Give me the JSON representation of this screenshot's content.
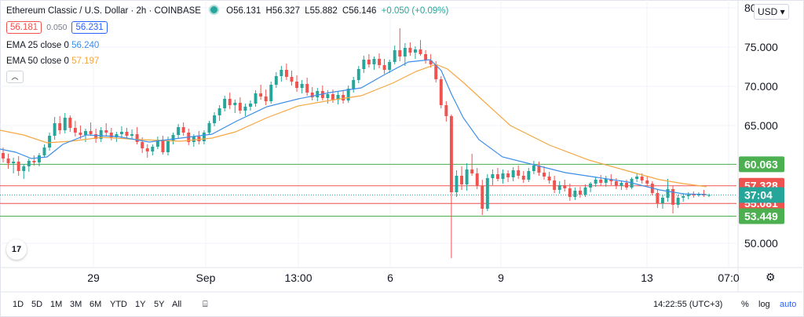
{
  "header": {
    "symbol_title": "Ethereum Classic / U.S. Dollar · 2h · COINBASE",
    "ohlc": {
      "open": "O56.131",
      "high": "H56.327",
      "low": "L55.882",
      "close": "C56.146",
      "change": "+0.050 (+0.09%)"
    },
    "sell_price": "56.181",
    "spread": "0.050",
    "buy_price": "56.231",
    "currency": "USD",
    "collapse_icon": "chevron-up-icon"
  },
  "indicators": [
    {
      "label": "EMA 25 close 0",
      "value": "56.240",
      "color": "#3d8ee8"
    },
    {
      "label": "EMA 50 close 0",
      "value": "57.197",
      "color": "#f5a742"
    }
  ],
  "chart_data": {
    "type": "candlestick",
    "ylim": [
      47,
      81
    ],
    "y_ticks": [
      {
        "value": 50,
        "label": "50.000"
      },
      {
        "value": 55,
        "label": "55.000"
      },
      {
        "value": 60,
        "label": "60.000"
      },
      {
        "value": 65,
        "label": "65.000"
      },
      {
        "value": 70,
        "label": "70.000"
      },
      {
        "value": 75,
        "label": "75.000"
      },
      {
        "value": 80,
        "label": "80.000"
      }
    ],
    "x_ticks": [
      "29",
      "Sep",
      "13:00",
      "6",
      "9",
      "13",
      "07:0"
    ],
    "candles": [
      {
        "o": 61.5,
        "h": 62.2,
        "l": 60.3,
        "c": 60.8
      },
      {
        "o": 60.8,
        "h": 61.4,
        "l": 59.5,
        "c": 60.2
      },
      {
        "o": 60.2,
        "h": 60.9,
        "l": 58.9,
        "c": 60.4
      },
      {
        "o": 60.4,
        "h": 61.1,
        "l": 58.6,
        "c": 59.2
      },
      {
        "o": 59.2,
        "h": 60.1,
        "l": 58.2,
        "c": 59.8
      },
      {
        "o": 59.8,
        "h": 60.8,
        "l": 59.1,
        "c": 60.5
      },
      {
        "o": 60.5,
        "h": 61.2,
        "l": 59.9,
        "c": 60.3
      },
      {
        "o": 60.3,
        "h": 61.5,
        "l": 59.8,
        "c": 61.2
      },
      {
        "o": 61.2,
        "h": 62.6,
        "l": 60.9,
        "c": 62.2
      },
      {
        "o": 62.2,
        "h": 64.1,
        "l": 61.8,
        "c": 63.7
      },
      {
        "o": 63.7,
        "h": 66.1,
        "l": 63.2,
        "c": 65.3
      },
      {
        "o": 65.3,
        "h": 66.2,
        "l": 63.9,
        "c": 64.4
      },
      {
        "o": 64.4,
        "h": 66.6,
        "l": 64.0,
        "c": 66.0
      },
      {
        "o": 66.0,
        "h": 66.3,
        "l": 64.2,
        "c": 64.7
      },
      {
        "o": 64.7,
        "h": 65.6,
        "l": 63.6,
        "c": 64.1
      },
      {
        "o": 64.1,
        "h": 65.0,
        "l": 63.3,
        "c": 63.8
      },
      {
        "o": 63.8,
        "h": 64.6,
        "l": 62.9,
        "c": 64.3
      },
      {
        "o": 64.3,
        "h": 65.4,
        "l": 63.7,
        "c": 63.9
      },
      {
        "o": 63.9,
        "h": 64.6,
        "l": 62.8,
        "c": 63.3
      },
      {
        "o": 63.3,
        "h": 64.8,
        "l": 62.9,
        "c": 64.4
      },
      {
        "o": 64.4,
        "h": 65.3,
        "l": 63.6,
        "c": 64.1
      },
      {
        "o": 64.1,
        "h": 64.7,
        "l": 63.1,
        "c": 63.5
      },
      {
        "o": 63.5,
        "h": 64.2,
        "l": 62.9,
        "c": 63.9
      },
      {
        "o": 63.9,
        "h": 64.9,
        "l": 63.4,
        "c": 64.2
      },
      {
        "o": 64.2,
        "h": 64.7,
        "l": 63.3,
        "c": 63.7
      },
      {
        "o": 63.7,
        "h": 64.5,
        "l": 63.2,
        "c": 63.9
      },
      {
        "o": 63.9,
        "h": 64.8,
        "l": 62.6,
        "c": 62.9
      },
      {
        "o": 62.9,
        "h": 63.5,
        "l": 61.5,
        "c": 62.1
      },
      {
        "o": 62.1,
        "h": 62.6,
        "l": 60.9,
        "c": 61.7
      },
      {
        "o": 61.7,
        "h": 62.6,
        "l": 61.2,
        "c": 62.3
      },
      {
        "o": 62.3,
        "h": 63.6,
        "l": 62.0,
        "c": 63.2
      },
      {
        "o": 63.2,
        "h": 63.7,
        "l": 61.3,
        "c": 61.6
      },
      {
        "o": 61.6,
        "h": 63.6,
        "l": 61.2,
        "c": 63.1
      },
      {
        "o": 63.1,
        "h": 64.1,
        "l": 62.6,
        "c": 63.8
      },
      {
        "o": 63.8,
        "h": 65.2,
        "l": 63.4,
        "c": 64.8
      },
      {
        "o": 64.8,
        "h": 65.4,
        "l": 63.7,
        "c": 64.1
      },
      {
        "o": 64.1,
        "h": 64.6,
        "l": 62.5,
        "c": 62.9
      },
      {
        "o": 62.9,
        "h": 63.9,
        "l": 62.3,
        "c": 63.6
      },
      {
        "o": 63.6,
        "h": 64.3,
        "l": 62.6,
        "c": 63.0
      },
      {
        "o": 63.0,
        "h": 64.4,
        "l": 62.6,
        "c": 64.1
      },
      {
        "o": 64.1,
        "h": 65.6,
        "l": 63.8,
        "c": 65.3
      },
      {
        "o": 65.3,
        "h": 66.7,
        "l": 64.9,
        "c": 66.3
      },
      {
        "o": 66.3,
        "h": 67.6,
        "l": 65.6,
        "c": 67.2
      },
      {
        "o": 67.2,
        "h": 68.8,
        "l": 66.8,
        "c": 68.4
      },
      {
        "o": 68.4,
        "h": 69.2,
        "l": 67.1,
        "c": 67.6
      },
      {
        "o": 67.6,
        "h": 68.3,
        "l": 66.6,
        "c": 67.9
      },
      {
        "o": 67.9,
        "h": 68.6,
        "l": 66.5,
        "c": 66.9
      },
      {
        "o": 66.9,
        "h": 67.8,
        "l": 66.2,
        "c": 67.4
      },
      {
        "o": 67.4,
        "h": 68.2,
        "l": 66.9,
        "c": 67.8
      },
      {
        "o": 67.8,
        "h": 69.5,
        "l": 67.4,
        "c": 69.1
      },
      {
        "o": 69.1,
        "h": 70.2,
        "l": 68.3,
        "c": 68.7
      },
      {
        "o": 68.7,
        "h": 69.6,
        "l": 67.6,
        "c": 68.1
      },
      {
        "o": 68.1,
        "h": 70.6,
        "l": 67.8,
        "c": 70.2
      },
      {
        "o": 70.2,
        "h": 71.8,
        "l": 69.8,
        "c": 71.3
      },
      {
        "o": 71.3,
        "h": 72.6,
        "l": 70.6,
        "c": 72.1
      },
      {
        "o": 72.1,
        "h": 72.9,
        "l": 70.8,
        "c": 71.2
      },
      {
        "o": 71.2,
        "h": 72.0,
        "l": 70.1,
        "c": 70.6
      },
      {
        "o": 70.6,
        "h": 71.4,
        "l": 69.3,
        "c": 69.8
      },
      {
        "o": 69.8,
        "h": 70.8,
        "l": 69.1,
        "c": 70.3
      },
      {
        "o": 70.3,
        "h": 71.1,
        "l": 68.8,
        "c": 69.2
      },
      {
        "o": 69.2,
        "h": 69.9,
        "l": 68.2,
        "c": 68.6
      },
      {
        "o": 68.6,
        "h": 69.8,
        "l": 68.1,
        "c": 69.4
      },
      {
        "o": 69.4,
        "h": 70.1,
        "l": 68.2,
        "c": 68.5
      },
      {
        "o": 68.5,
        "h": 69.5,
        "l": 67.8,
        "c": 69.0
      },
      {
        "o": 69.0,
        "h": 69.6,
        "l": 67.9,
        "c": 68.3
      },
      {
        "o": 68.3,
        "h": 69.3,
        "l": 67.7,
        "c": 68.9
      },
      {
        "o": 68.9,
        "h": 69.5,
        "l": 67.8,
        "c": 68.2
      },
      {
        "o": 68.2,
        "h": 70.1,
        "l": 67.9,
        "c": 69.7
      },
      {
        "o": 69.7,
        "h": 71.2,
        "l": 69.2,
        "c": 70.8
      },
      {
        "o": 70.8,
        "h": 72.6,
        "l": 70.4,
        "c": 72.2
      },
      {
        "o": 72.2,
        "h": 73.9,
        "l": 71.7,
        "c": 73.4
      },
      {
        "o": 73.4,
        "h": 74.1,
        "l": 72.4,
        "c": 72.8
      },
      {
        "o": 72.8,
        "h": 73.8,
        "l": 72.1,
        "c": 73.5
      },
      {
        "o": 73.5,
        "h": 74.2,
        "l": 72.3,
        "c": 72.7
      },
      {
        "o": 72.7,
        "h": 73.5,
        "l": 71.6,
        "c": 72.1
      },
      {
        "o": 72.1,
        "h": 73.4,
        "l": 71.7,
        "c": 73.1
      },
      {
        "o": 73.1,
        "h": 75.2,
        "l": 72.8,
        "c": 74.6
      },
      {
        "o": 74.6,
        "h": 77.4,
        "l": 73.2,
        "c": 73.8
      },
      {
        "o": 73.8,
        "h": 75.5,
        "l": 72.6,
        "c": 74.9
      },
      {
        "o": 74.9,
        "h": 75.6,
        "l": 73.9,
        "c": 74.3
      },
      {
        "o": 74.3,
        "h": 75.1,
        "l": 73.5,
        "c": 74.7
      },
      {
        "o": 74.7,
        "h": 75.9,
        "l": 73.9,
        "c": 74.1
      },
      {
        "o": 74.1,
        "h": 74.6,
        "l": 72.9,
        "c": 73.3
      },
      {
        "o": 73.3,
        "h": 74.1,
        "l": 72.4,
        "c": 72.8
      },
      {
        "o": 72.8,
        "h": 73.2,
        "l": 70.5,
        "c": 70.9
      },
      {
        "o": 70.9,
        "h": 71.3,
        "l": 67.2,
        "c": 67.6
      },
      {
        "o": 67.6,
        "h": 68.1,
        "l": 65.5,
        "c": 66.2
      },
      {
        "o": 66.2,
        "h": 66.4,
        "l": 48.1,
        "c": 56.5
      },
      {
        "o": 56.5,
        "h": 59.3,
        "l": 55.9,
        "c": 58.6
      },
      {
        "o": 58.6,
        "h": 59.8,
        "l": 56.8,
        "c": 57.5
      },
      {
        "o": 57.5,
        "h": 60.2,
        "l": 56.7,
        "c": 59.4
      },
      {
        "o": 59.4,
        "h": 61.4,
        "l": 58.6,
        "c": 58.9
      },
      {
        "o": 58.9,
        "h": 59.6,
        "l": 56.9,
        "c": 57.3
      },
      {
        "o": 57.3,
        "h": 58.1,
        "l": 53.6,
        "c": 54.4
      },
      {
        "o": 54.4,
        "h": 58.8,
        "l": 54.1,
        "c": 58.3
      },
      {
        "o": 58.3,
        "h": 59.4,
        "l": 57.4,
        "c": 58.8
      },
      {
        "o": 58.8,
        "h": 59.6,
        "l": 57.9,
        "c": 58.2
      },
      {
        "o": 58.2,
        "h": 59.4,
        "l": 57.6,
        "c": 58.9
      },
      {
        "o": 58.9,
        "h": 59.3,
        "l": 57.8,
        "c": 58.4
      },
      {
        "o": 58.4,
        "h": 59.7,
        "l": 57.9,
        "c": 59.3
      },
      {
        "o": 59.3,
        "h": 59.9,
        "l": 58.2,
        "c": 58.6
      },
      {
        "o": 58.6,
        "h": 59.2,
        "l": 57.7,
        "c": 58.1
      },
      {
        "o": 58.1,
        "h": 59.6,
        "l": 57.8,
        "c": 59.2
      },
      {
        "o": 59.2,
        "h": 60.5,
        "l": 58.8,
        "c": 59.9
      },
      {
        "o": 59.9,
        "h": 60.4,
        "l": 58.6,
        "c": 59.0
      },
      {
        "o": 59.0,
        "h": 59.8,
        "l": 58.1,
        "c": 58.5
      },
      {
        "o": 58.5,
        "h": 59.1,
        "l": 57.6,
        "c": 58.0
      },
      {
        "o": 58.0,
        "h": 58.6,
        "l": 56.4,
        "c": 56.8
      },
      {
        "o": 56.8,
        "h": 57.9,
        "l": 56.3,
        "c": 57.4
      },
      {
        "o": 57.4,
        "h": 58.1,
        "l": 56.6,
        "c": 57.0
      },
      {
        "o": 57.0,
        "h": 57.6,
        "l": 55.4,
        "c": 55.9
      },
      {
        "o": 55.9,
        "h": 57.1,
        "l": 55.5,
        "c": 56.7
      },
      {
        "o": 56.7,
        "h": 57.2,
        "l": 55.8,
        "c": 56.2
      },
      {
        "o": 56.2,
        "h": 57.5,
        "l": 55.9,
        "c": 57.1
      },
      {
        "o": 57.1,
        "h": 57.8,
        "l": 56.5,
        "c": 57.6
      },
      {
        "o": 57.6,
        "h": 58.5,
        "l": 57.2,
        "c": 58.1
      },
      {
        "o": 58.1,
        "h": 58.7,
        "l": 57.3,
        "c": 57.7
      },
      {
        "o": 57.7,
        "h": 58.6,
        "l": 57.2,
        "c": 58.2
      },
      {
        "o": 58.2,
        "h": 58.8,
        "l": 57.4,
        "c": 57.9
      },
      {
        "o": 57.9,
        "h": 58.3,
        "l": 56.9,
        "c": 57.3
      },
      {
        "o": 57.3,
        "h": 58.0,
        "l": 56.8,
        "c": 57.7
      },
      {
        "o": 57.7,
        "h": 58.1,
        "l": 56.8,
        "c": 57.1
      },
      {
        "o": 57.1,
        "h": 58.4,
        "l": 56.9,
        "c": 58.2
      },
      {
        "o": 58.2,
        "h": 58.9,
        "l": 57.8,
        "c": 58.5
      },
      {
        "o": 58.5,
        "h": 58.9,
        "l": 57.6,
        "c": 58.0
      },
      {
        "o": 58.0,
        "h": 58.6,
        "l": 57.3,
        "c": 57.6
      },
      {
        "o": 57.6,
        "h": 57.9,
        "l": 56.1,
        "c": 56.4
      },
      {
        "o": 56.4,
        "h": 56.9,
        "l": 54.5,
        "c": 55.1
      },
      {
        "o": 55.1,
        "h": 56.2,
        "l": 54.4,
        "c": 55.8
      },
      {
        "o": 55.8,
        "h": 58.2,
        "l": 55.3,
        "c": 56.9
      },
      {
        "o": 56.9,
        "h": 57.3,
        "l": 53.8,
        "c": 54.9
      },
      {
        "o": 54.9,
        "h": 56.2,
        "l": 54.5,
        "c": 55.8
      },
      {
        "o": 55.8,
        "h": 56.4,
        "l": 55.3,
        "c": 56.0
      },
      {
        "o": 56.0,
        "h": 56.5,
        "l": 55.6,
        "c": 56.2
      },
      {
        "o": 56.2,
        "h": 56.6,
        "l": 55.8,
        "c": 56.1
      },
      {
        "o": 56.1,
        "h": 56.5,
        "l": 55.9,
        "c": 56.3
      },
      {
        "o": 56.3,
        "h": 56.8,
        "l": 55.9,
        "c": 56.1
      },
      {
        "o": 56.1,
        "h": 56.327,
        "l": 55.882,
        "c": 56.146
      }
    ],
    "ema25": [
      [
        0,
        62.0
      ],
      [
        20,
        61.6
      ],
      [
        40,
        60.8
      ],
      [
        60,
        61.0
      ],
      [
        80,
        62.6
      ],
      [
        110,
        63.8
      ],
      [
        150,
        63.6
      ],
      [
        190,
        62.9
      ],
      [
        230,
        63.4
      ],
      [
        270,
        63.9
      ],
      [
        300,
        65.5
      ],
      [
        340,
        67.4
      ],
      [
        380,
        68.4
      ],
      [
        420,
        69.2
      ],
      [
        460,
        69.8
      ],
      [
        490,
        71.5
      ],
      [
        520,
        73.1
      ],
      [
        548,
        73.4
      ],
      [
        562,
        72.0
      ],
      [
        575,
        69.0
      ],
      [
        590,
        66.0
      ],
      [
        610,
        63.2
      ],
      [
        640,
        61.0
      ],
      [
        680,
        60.0
      ],
      [
        720,
        59.0
      ],
      [
        760,
        58.4
      ],
      [
        800,
        57.8
      ],
      [
        840,
        56.8
      ],
      [
        870,
        56.3
      ],
      [
        900,
        56.2
      ]
    ],
    "ema50": [
      [
        0,
        64.4
      ],
      [
        30,
        63.8
      ],
      [
        60,
        62.8
      ],
      [
        90,
        63.0
      ],
      [
        130,
        63.5
      ],
      [
        180,
        63.2
      ],
      [
        230,
        63.0
      ],
      [
        270,
        63.4
      ],
      [
        300,
        64.2
      ],
      [
        340,
        66.0
      ],
      [
        380,
        67.5
      ],
      [
        420,
        68.2
      ],
      [
        460,
        68.8
      ],
      [
        500,
        70.4
      ],
      [
        530,
        71.9
      ],
      [
        555,
        72.8
      ],
      [
        570,
        72.2
      ],
      [
        590,
        70.5
      ],
      [
        615,
        68.2
      ],
      [
        650,
        65.0
      ],
      [
        700,
        62.5
      ],
      [
        750,
        60.6
      ],
      [
        800,
        59.2
      ],
      [
        840,
        58.1
      ],
      [
        870,
        57.6
      ],
      [
        900,
        57.2
      ]
    ],
    "horizontal_lines": [
      {
        "value": 60.063,
        "color": "#4caf50"
      },
      {
        "value": 53.449,
        "color": "#4caf50"
      },
      {
        "value": 57.328,
        "color": "#ef5350"
      },
      {
        "value": 55.081,
        "color": "#ef5350"
      },
      {
        "value": 56.146,
        "color": "#26a69a",
        "dotted": true
      }
    ],
    "price_labels": [
      {
        "value": 60.063,
        "text": "60.063",
        "bg": "#4caf50"
      },
      {
        "value": 57.328,
        "text": "57.328",
        "bg": "#ef5350"
      },
      {
        "value": 55.081,
        "text": "55.081",
        "bg": "#ef5350"
      },
      {
        "value": 53.449,
        "text": "53.449",
        "bg": "#4caf50"
      },
      {
        "value": 56.146,
        "text": "37:04",
        "bg": "#26a69a"
      }
    ],
    "up_color": "#26a69a",
    "down_color": "#ef5350"
  },
  "bottom_bar": {
    "timeframes": [
      "1D",
      "5D",
      "1M",
      "3M",
      "6M",
      "YTD",
      "1Y",
      "5Y",
      "All"
    ],
    "date_range_icon": "calendar-icon",
    "clock": "14:22:55 (UTC+3)",
    "percent": "%",
    "log": "log",
    "auto": "auto"
  },
  "settings_icon": "gear-icon",
  "logo_text": "17"
}
